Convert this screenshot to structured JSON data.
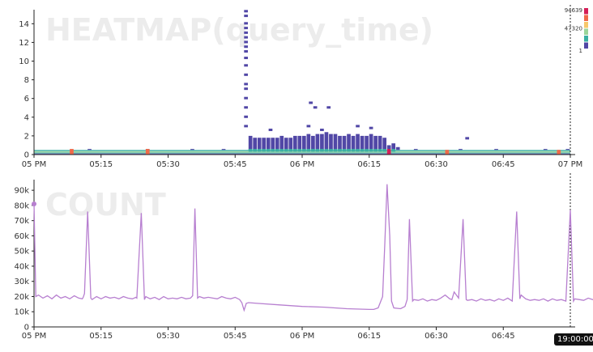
{
  "chart_data": [
    {
      "type": "heatmap",
      "title": "HEATMAP(query_time)",
      "x_ticks": [
        "05 PM",
        "05:15",
        "05:30",
        "05:45",
        "06 PM",
        "06:15",
        "06:30",
        "06:45",
        "07 PM"
      ],
      "y_ticks": [
        "0",
        "2",
        "4",
        "6",
        "8",
        "10",
        "12",
        "14"
      ],
      "ylim": [
        0,
        15.5
      ],
      "x_range": [
        "17:00",
        "19:00"
      ],
      "legend": {
        "max_label": "94639",
        "mid_label": "47320",
        "min_label": "1",
        "colors": [
          "#d41f58",
          "#f06a4a",
          "#f7c86b",
          "#9bd59a",
          "#3bb0a2",
          "#5147a6"
        ]
      },
      "columns": [
        {
          "t": 0.0,
          "top": 0.5
        },
        {
          "t": 8.5,
          "top": 0.5
        },
        {
          "t": 12.5,
          "top": 0.6
        },
        {
          "t": 25.5,
          "top": 0.6
        },
        {
          "t": 35.5,
          "top": 0.6
        },
        {
          "t": 42.5,
          "top": 0.6
        },
        {
          "t": 47.5,
          "top": 15.5,
          "sparse": true
        },
        {
          "t": 48.5,
          "top": 2.0
        },
        {
          "t": 49.5,
          "top": 1.8
        },
        {
          "t": 50.5,
          "top": 1.8
        },
        {
          "t": 51.5,
          "top": 1.8
        },
        {
          "t": 52.5,
          "top": 1.8
        },
        {
          "t": 53.5,
          "top": 1.8
        },
        {
          "t": 54.5,
          "top": 1.8
        },
        {
          "t": 55.5,
          "top": 2.0
        },
        {
          "t": 56.5,
          "top": 1.8
        },
        {
          "t": 57.5,
          "top": 1.8
        },
        {
          "t": 58.5,
          "top": 2.0
        },
        {
          "t": 59.5,
          "top": 2.0
        },
        {
          "t": 60.5,
          "top": 2.0
        },
        {
          "t": 61.5,
          "top": 2.2
        },
        {
          "t": 62.5,
          "top": 2.0
        },
        {
          "t": 63.5,
          "top": 2.2
        },
        {
          "t": 64.5,
          "top": 2.2
        },
        {
          "t": 65.5,
          "top": 2.4
        },
        {
          "t": 66.5,
          "top": 2.2
        },
        {
          "t": 67.5,
          "top": 2.2
        },
        {
          "t": 68.5,
          "top": 2.0
        },
        {
          "t": 69.5,
          "top": 2.0
        },
        {
          "t": 70.5,
          "top": 2.2
        },
        {
          "t": 71.5,
          "top": 2.0
        },
        {
          "t": 72.5,
          "top": 2.2
        },
        {
          "t": 73.5,
          "top": 2.0
        },
        {
          "t": 74.5,
          "top": 2.0
        },
        {
          "t": 75.5,
          "top": 2.2
        },
        {
          "t": 76.5,
          "top": 2.0
        },
        {
          "t": 77.5,
          "top": 2.0
        },
        {
          "t": 78.5,
          "top": 1.8
        },
        {
          "t": 79.5,
          "top": 1.0
        },
        {
          "t": 80.5,
          "top": 1.2
        },
        {
          "t": 81.5,
          "top": 0.8
        },
        {
          "t": 85.5,
          "top": 0.6
        },
        {
          "t": 92.5,
          "top": 0.4
        },
        {
          "t": 95.5,
          "top": 0.6
        },
        {
          "t": 97.5,
          "top": 0.4
        },
        {
          "t": 103.5,
          "top": 0.6
        },
        {
          "t": 105.5,
          "top": 0.4
        },
        {
          "t": 111.5,
          "top": 0.4
        },
        {
          "t": 114.5,
          "top": 0.6
        },
        {
          "t": 117.5,
          "top": 0.4
        },
        {
          "t": 119.5,
          "top": 0.6
        }
      ],
      "outliers": [
        {
          "t": 62.0,
          "v": 5.5
        },
        {
          "t": 63.0,
          "v": 5.0
        },
        {
          "t": 66.0,
          "v": 5.0
        },
        {
          "t": 61.5,
          "v": 3.0
        },
        {
          "t": 64.5,
          "v": 2.6
        },
        {
          "t": 72.5,
          "v": 3.0
        },
        {
          "t": 75.5,
          "v": 2.8
        },
        {
          "t": 97.0,
          "v": 1.7
        },
        {
          "t": 53.0,
          "v": 2.6
        }
      ],
      "sparse_cells": [
        {
          "t": 47.5,
          "v": 15.3
        },
        {
          "t": 47.5,
          "v": 14.8
        },
        {
          "t": 47.5,
          "v": 14.0
        },
        {
          "t": 47.5,
          "v": 13.5
        },
        {
          "t": 47.5,
          "v": 13.0
        },
        {
          "t": 47.5,
          "v": 12.5
        },
        {
          "t": 47.5,
          "v": 12.0
        },
        {
          "t": 47.5,
          "v": 11.5
        },
        {
          "t": 47.5,
          "v": 11.0
        },
        {
          "t": 47.5,
          "v": 10.3
        },
        {
          "t": 47.5,
          "v": 9.5
        },
        {
          "t": 47.5,
          "v": 8.5
        },
        {
          "t": 47.5,
          "v": 7.5
        },
        {
          "t": 47.5,
          "v": 7.0
        },
        {
          "t": 47.5,
          "v": 6.0
        },
        {
          "t": 47.5,
          "v": 5.0
        },
        {
          "t": 47.5,
          "v": 4.0
        },
        {
          "t": 47.5,
          "v": 3.0
        }
      ]
    },
    {
      "type": "line",
      "title": "COUNT",
      "x_ticks": [
        "05 PM",
        "05:15",
        "05:30",
        "05:45",
        "06 PM",
        "06:15",
        "06:30",
        "06:45"
      ],
      "y_ticks": [
        "0",
        "10k",
        "20k",
        "30k",
        "40k",
        "50k",
        "60k",
        "70k",
        "80k",
        "90k"
      ],
      "ylim": [
        0,
        97000
      ],
      "x_range": [
        "17:00",
        "19:00"
      ],
      "time_badge": "19:00:00",
      "color": "#b77fd0",
      "series": [
        {
          "values": [
            [
              0,
              81000
            ],
            [
              0.4,
              20000
            ],
            [
              1,
              21000
            ],
            [
              2,
              19000
            ],
            [
              3,
              20500
            ],
            [
              4,
              18500
            ],
            [
              5,
              21000
            ],
            [
              6,
              19000
            ],
            [
              7,
              20000
            ],
            [
              8,
              18500
            ],
            [
              9,
              20500
            ],
            [
              10,
              19000
            ],
            [
              10.8,
              18500
            ],
            [
              11,
              19500
            ],
            [
              11.3,
              22000
            ],
            [
              12,
              76000
            ],
            [
              12.7,
              19000
            ],
            [
              13,
              18000
            ],
            [
              14,
              20000
            ],
            [
              15,
              18500
            ],
            [
              16,
              20000
            ],
            [
              17,
              19000
            ],
            [
              18,
              19500
            ],
            [
              19,
              18500
            ],
            [
              20,
              20000
            ],
            [
              21,
              19000
            ],
            [
              22,
              18500
            ],
            [
              22.8,
              19500
            ],
            [
              23,
              19000
            ],
            [
              24,
              75000
            ],
            [
              24.7,
              18000
            ],
            [
              25,
              20000
            ],
            [
              26,
              18500
            ],
            [
              27,
              19500
            ],
            [
              28,
              18000
            ],
            [
              29,
              20000
            ],
            [
              30,
              18500
            ],
            [
              31,
              19000
            ],
            [
              32,
              18500
            ],
            [
              33,
              19500
            ],
            [
              34,
              18500
            ],
            [
              35,
              19000
            ],
            [
              35.5,
              20500
            ],
            [
              36,
              78000
            ],
            [
              36.6,
              19000
            ],
            [
              37,
              20000
            ],
            [
              38,
              19000
            ],
            [
              39,
              19500
            ],
            [
              40,
              19000
            ],
            [
              41,
              18500
            ],
            [
              42,
              20000
            ],
            [
              43,
              19000
            ],
            [
              44,
              18500
            ],
            [
              45,
              19500
            ],
            [
              46,
              18000
            ],
            [
              46.5,
              16000
            ],
            [
              47,
              11000
            ],
            [
              47.5,
              15500
            ],
            [
              48,
              16000
            ],
            [
              50,
              15500
            ],
            [
              55,
              14500
            ],
            [
              60,
              13500
            ],
            [
              65,
              13000
            ],
            [
              70,
              12000
            ],
            [
              75,
              11500
            ],
            [
              76,
              11500
            ],
            [
              77,
              12500
            ],
            [
              78,
              20000
            ],
            [
              78.5,
              56000
            ],
            [
              79,
              94000
            ],
            [
              79.6,
              60000
            ],
            [
              80,
              17000
            ],
            [
              80.5,
              12500
            ],
            [
              82,
              12000
            ],
            [
              83,
              13500
            ],
            [
              83.5,
              18000
            ],
            [
              84,
              71000
            ],
            [
              84.7,
              17000
            ],
            [
              85,
              18000
            ],
            [
              86,
              17500
            ],
            [
              87,
              18500
            ],
            [
              88,
              17000
            ],
            [
              89,
              18000
            ],
            [
              90,
              17500
            ],
            [
              91,
              19000
            ],
            [
              92,
              21000
            ],
            [
              93,
              18500
            ],
            [
              93.5,
              18000
            ],
            [
              94,
              23000
            ],
            [
              95,
              19000
            ],
            [
              96,
              71000
            ],
            [
              96.7,
              18000
            ],
            [
              97,
              17500
            ],
            [
              98,
              18000
            ],
            [
              99,
              17000
            ],
            [
              100,
              18500
            ],
            [
              101,
              17500
            ],
            [
              102,
              18000
            ],
            [
              103,
              17000
            ],
            [
              104,
              18500
            ],
            [
              105,
              17500
            ],
            [
              106,
              19000
            ],
            [
              107,
              17000
            ],
            [
              108,
              76000
            ],
            [
              108.7,
              18500
            ],
            [
              109,
              21000
            ],
            [
              110,
              18500
            ],
            [
              111,
              17500
            ],
            [
              112,
              18000
            ],
            [
              113,
              17500
            ],
            [
              114,
              18500
            ],
            [
              115,
              17000
            ],
            [
              116,
              18500
            ],
            [
              117,
              17500
            ],
            [
              118,
              18000
            ],
            [
              119,
              17000
            ],
            [
              120,
              77000
            ],
            [
              120.7,
              17000
            ],
            [
              121,
              18500
            ],
            [
              122,
              18000
            ],
            [
              123,
              17500
            ],
            [
              124,
              19000
            ],
            [
              125,
              18000
            ],
            [
              126,
              17500
            ],
            [
              127,
              18000
            ],
            [
              128,
              19000
            ],
            [
              129,
              18500
            ],
            [
              130,
              19000
            ],
            [
              131,
              21000
            ],
            [
              132,
              76000
            ],
            [
              132.7,
              18000
            ],
            [
              133,
              17500
            ],
            [
              134,
              19000
            ],
            [
              135,
              18000
            ],
            [
              136,
              17500
            ],
            [
              137,
              18500
            ],
            [
              138,
              17000
            ],
            [
              139,
              17500
            ]
          ]
        }
      ]
    }
  ]
}
